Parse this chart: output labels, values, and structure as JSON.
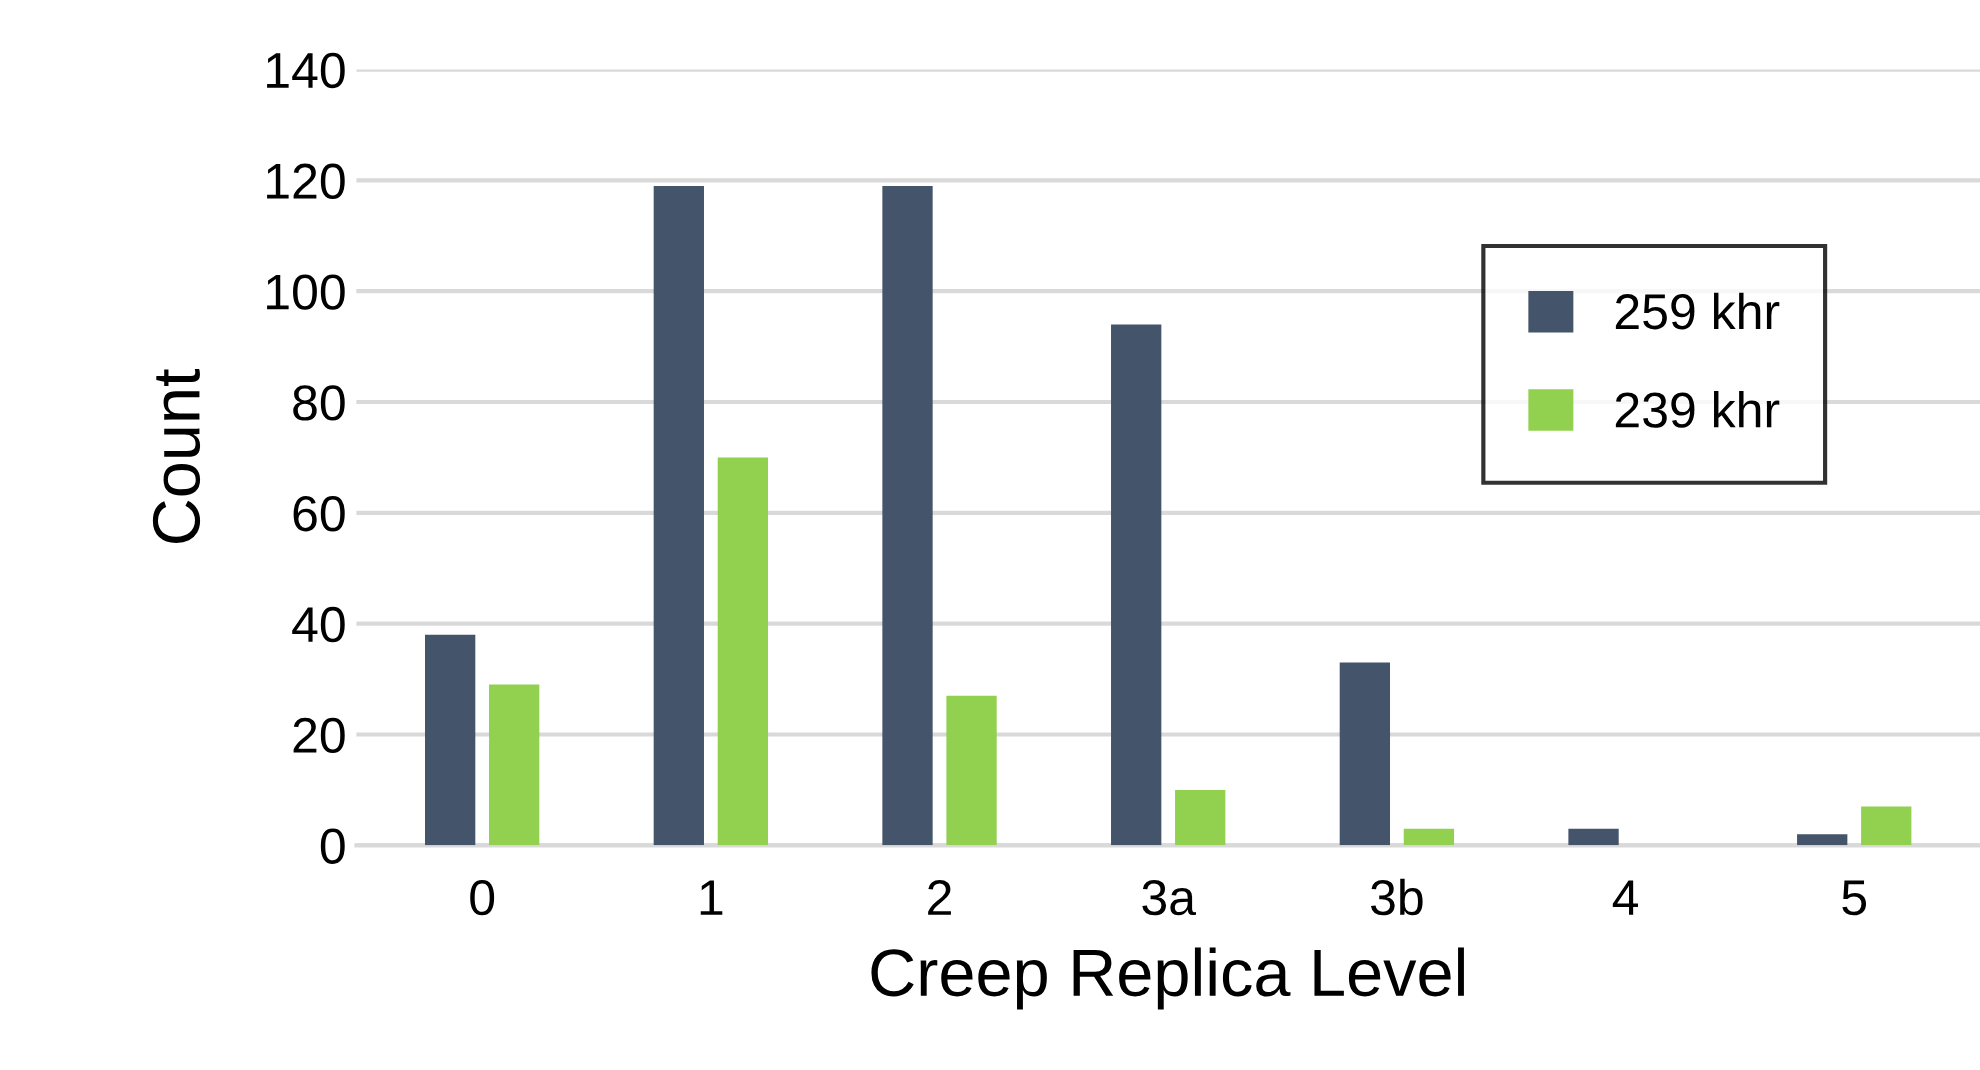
{
  "chart_data": {
    "type": "bar",
    "xlabel": "Creep Replica Level",
    "ylabel": "Count",
    "categories": [
      "0",
      "1",
      "2",
      "3a",
      "3b",
      "4",
      "5"
    ],
    "series": [
      {
        "name": "259 khr",
        "color": "#44546a",
        "values": [
          38,
          119,
          119,
          94,
          33,
          3,
          2
        ]
      },
      {
        "name": "239 khr",
        "color": "#92d050",
        "values": [
          29,
          70,
          27,
          10,
          3,
          0,
          7
        ]
      }
    ],
    "ylim": [
      0,
      140
    ],
    "yticks": [
      0,
      20,
      40,
      60,
      80,
      100,
      120,
      140
    ],
    "grid": "y",
    "legend": "right"
  }
}
